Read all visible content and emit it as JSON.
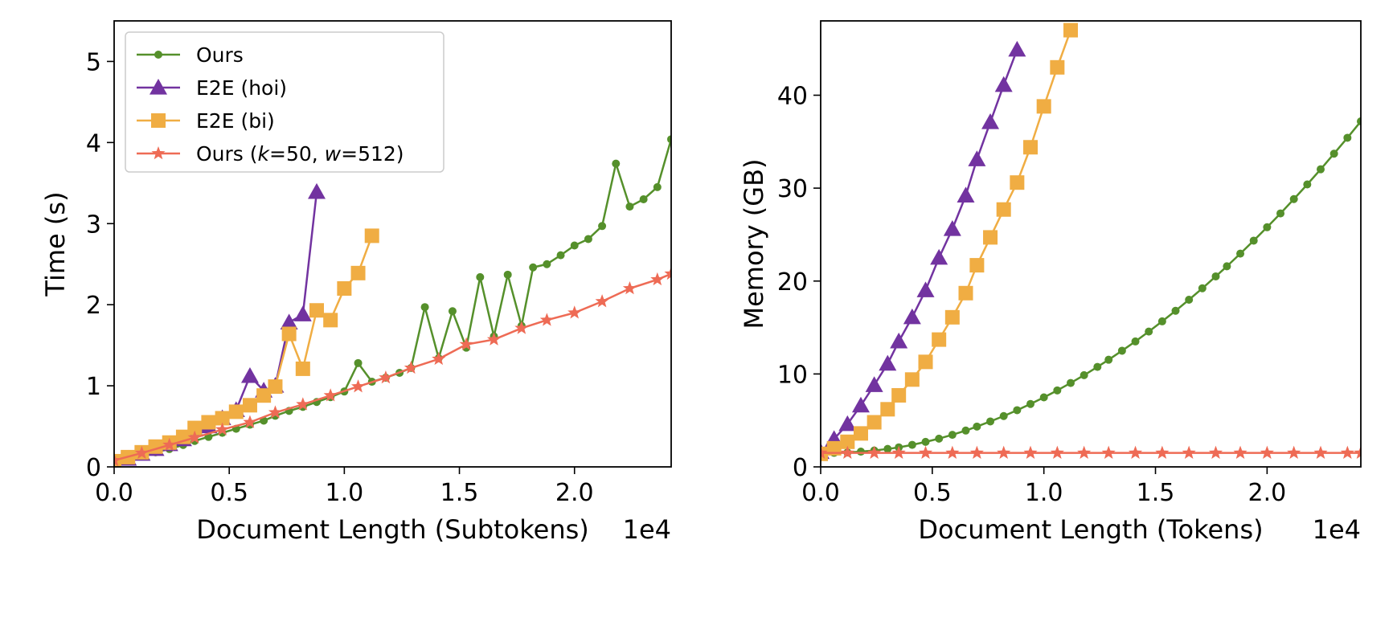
{
  "figure": {
    "colors": {
      "ours": "#55902b",
      "e2e_hoi": "#7233a0",
      "e2e_bi": "#f0ad43",
      "ours_k50": "#ee6b55"
    },
    "legend": {
      "entries": [
        {
          "key": "ours",
          "label": "Ours",
          "marker": "circle"
        },
        {
          "key": "e2e_hoi",
          "label": "E2E (hoi)",
          "marker": "triangle"
        },
        {
          "key": "e2e_bi",
          "label": "E2E (bi)",
          "marker": "square"
        },
        {
          "key": "ours_k50",
          "label": "Ours (k=50, w=512)",
          "marker": "star",
          "rich": [
            {
              "t": "Ours (",
              "i": false
            },
            {
              "t": "k",
              "i": true
            },
            {
              "t": "=50, ",
              "i": false
            },
            {
              "t": "w",
              "i": true
            },
            {
              "t": "=512)",
              "i": false
            }
          ]
        }
      ],
      "placement": "upper-left"
    }
  },
  "chart_data": [
    {
      "type": "line",
      "xlabel": "Document Length (Subtokens)",
      "ylabel": "Time (s)",
      "offset_text": "1e4",
      "xlim": [
        0,
        2.42
      ],
      "ylim": [
        0,
        5.5
      ],
      "xticks": [
        0.0,
        0.5,
        1.0,
        1.5,
        2.0
      ],
      "xtick_labels": [
        "0.0",
        "0.5",
        "1.0",
        "1.5",
        "2.0"
      ],
      "yticks": [
        0,
        1,
        2,
        3,
        4,
        5
      ],
      "ytick_labels": [
        "0",
        "1",
        "2",
        "3",
        "4",
        "5"
      ],
      "grid": false,
      "series": [
        {
          "name": "Ours",
          "key": "ours",
          "x": [
            0,
            0.06,
            0.12,
            0.18,
            0.24,
            0.3,
            0.35,
            0.41,
            0.47,
            0.53,
            0.59,
            0.65,
            0.7,
            0.76,
            0.82,
            0.88,
            0.94,
            1.0,
            1.06,
            1.12,
            1.18,
            1.24,
            1.29,
            1.35,
            1.41,
            1.47,
            1.53,
            1.59,
            1.65,
            1.71,
            1.77,
            1.82,
            1.88,
            1.94,
            2.0,
            2.06,
            2.12,
            2.18,
            2.24,
            2.3,
            2.36,
            2.42
          ],
          "y": [
            0.05,
            0.09,
            0.13,
            0.18,
            0.22,
            0.27,
            0.32,
            0.37,
            0.42,
            0.47,
            0.52,
            0.57,
            0.63,
            0.69,
            0.74,
            0.8,
            0.86,
            0.93,
            1.28,
            1.05,
            1.1,
            1.16,
            1.22,
            1.97,
            1.34,
            1.92,
            1.47,
            2.34,
            1.61,
            2.37,
            1.74,
            2.46,
            2.5,
            2.61,
            2.73,
            2.81,
            2.97,
            3.74,
            3.21,
            3.3,
            3.45,
            4.04
          ]
        },
        {
          "name": "E2E (hoi)",
          "key": "e2e_hoi",
          "x": [
            0,
            0.06,
            0.12,
            0.18,
            0.24,
            0.3,
            0.35,
            0.41,
            0.47,
            0.53,
            0.59,
            0.65,
            0.7,
            0.76,
            0.82,
            0.88
          ],
          "y": [
            0.05,
            0.1,
            0.16,
            0.22,
            0.28,
            0.34,
            0.46,
            0.5,
            0.6,
            0.7,
            1.12,
            0.94,
            1.0,
            1.78,
            1.88,
            3.39
          ]
        },
        {
          "name": "E2E (bi)",
          "key": "e2e_bi",
          "x": [
            0,
            0.06,
            0.12,
            0.18,
            0.24,
            0.3,
            0.35,
            0.41,
            0.47,
            0.53,
            0.59,
            0.65,
            0.7,
            0.76,
            0.82,
            0.88,
            0.94,
            1.0,
            1.06,
            1.12
          ],
          "y": [
            0.07,
            0.12,
            0.18,
            0.25,
            0.3,
            0.37,
            0.48,
            0.55,
            0.6,
            0.68,
            0.76,
            0.88,
            0.99,
            1.64,
            1.21,
            1.93,
            1.81,
            2.2,
            2.39,
            2.85
          ]
        },
        {
          "name": "Ours (k=50, w=512)",
          "key": "ours_k50",
          "x": [
            0,
            0.12,
            0.24,
            0.35,
            0.47,
            0.59,
            0.7,
            0.82,
            0.94,
            1.06,
            1.18,
            1.29,
            1.41,
            1.53,
            1.65,
            1.77,
            1.88,
            2.0,
            2.12,
            2.24,
            2.36,
            2.42
          ],
          "y": [
            0.08,
            0.17,
            0.27,
            0.36,
            0.46,
            0.55,
            0.67,
            0.77,
            0.88,
            0.99,
            1.1,
            1.22,
            1.33,
            1.51,
            1.57,
            1.71,
            1.81,
            1.9,
            2.04,
            2.2,
            2.31,
            2.38
          ]
        }
      ]
    },
    {
      "type": "line",
      "xlabel": "Document Length (Tokens)",
      "ylabel": "Memory (GB)",
      "offset_text": "1e4",
      "xlim": [
        0,
        2.42
      ],
      "ylim": [
        0,
        48
      ],
      "xticks": [
        0.0,
        0.5,
        1.0,
        1.5,
        2.0
      ],
      "xtick_labels": [
        "0.0",
        "0.5",
        "1.0",
        "1.5",
        "2.0"
      ],
      "yticks": [
        0,
        10,
        20,
        30,
        40
      ],
      "ytick_labels": [
        "0",
        "10",
        "20",
        "30",
        "40"
      ],
      "grid": false,
      "series": [
        {
          "name": "Ours",
          "key": "ours",
          "x": [
            0.0,
            0.06,
            0.12,
            0.18,
            0.24,
            0.3,
            0.35,
            0.41,
            0.47,
            0.53,
            0.59,
            0.65,
            0.7,
            0.76,
            0.82,
            0.88,
            0.94,
            1.0,
            1.06,
            1.12,
            1.18,
            1.24,
            1.29,
            1.35,
            1.41,
            1.47,
            1.53,
            1.59,
            1.65,
            1.71,
            1.77,
            1.82,
            1.88,
            1.94,
            2.0,
            2.06,
            2.12,
            2.18,
            2.24,
            2.3,
            2.36,
            2.42
          ],
          "y": [
            1.5,
            1.51,
            1.55,
            1.64,
            1.76,
            1.93,
            2.1,
            2.37,
            2.69,
            3.04,
            3.45,
            3.91,
            4.34,
            4.89,
            5.47,
            6.1,
            6.77,
            7.48,
            8.23,
            9.03,
            9.87,
            10.76,
            11.53,
            12.5,
            13.5,
            14.56,
            15.66,
            16.8,
            17.99,
            19.22,
            20.5,
            21.59,
            22.95,
            24.35,
            25.79,
            27.28,
            28.82,
            30.4,
            32.03,
            33.71,
            35.42,
            37.19
          ]
        },
        {
          "name": "E2E (hoi)",
          "key": "e2e_hoi",
          "x": [
            0,
            0.06,
            0.12,
            0.18,
            0.24,
            0.3,
            0.35,
            0.41,
            0.47,
            0.53,
            0.59,
            0.65,
            0.7,
            0.76,
            0.82,
            0.88
          ],
          "y": [
            1.6,
            3.0,
            4.6,
            6.6,
            8.8,
            11.1,
            13.5,
            16.1,
            19.0,
            22.5,
            25.6,
            29.2,
            33.1,
            37.1,
            41.1,
            44.9
          ]
        },
        {
          "name": "E2E (bi)",
          "key": "e2e_bi",
          "x": [
            0,
            0.06,
            0.12,
            0.18,
            0.24,
            0.3,
            0.35,
            0.41,
            0.47,
            0.53,
            0.59,
            0.65,
            0.7,
            0.76,
            0.82,
            0.88,
            0.94,
            1.0,
            1.06,
            1.12
          ],
          "y": [
            1.4,
            2.0,
            2.7,
            3.6,
            4.8,
            6.2,
            7.7,
            9.4,
            11.3,
            13.7,
            16.1,
            18.7,
            21.7,
            24.7,
            27.7,
            30.6,
            34.4,
            38.8,
            43.0,
            47.0
          ]
        },
        {
          "name": "Ours (k=50, w=512)",
          "key": "ours_k50",
          "x": [
            0,
            0.12,
            0.24,
            0.35,
            0.47,
            0.59,
            0.7,
            0.82,
            0.94,
            1.06,
            1.18,
            1.29,
            1.41,
            1.53,
            1.65,
            1.77,
            1.88,
            2.0,
            2.12,
            2.24,
            2.36,
            2.42
          ],
          "y": [
            1.5,
            1.5,
            1.5,
            1.5,
            1.5,
            1.5,
            1.5,
            1.5,
            1.5,
            1.5,
            1.5,
            1.5,
            1.5,
            1.5,
            1.5,
            1.5,
            1.5,
            1.5,
            1.5,
            1.5,
            1.5,
            1.5
          ]
        }
      ]
    }
  ]
}
